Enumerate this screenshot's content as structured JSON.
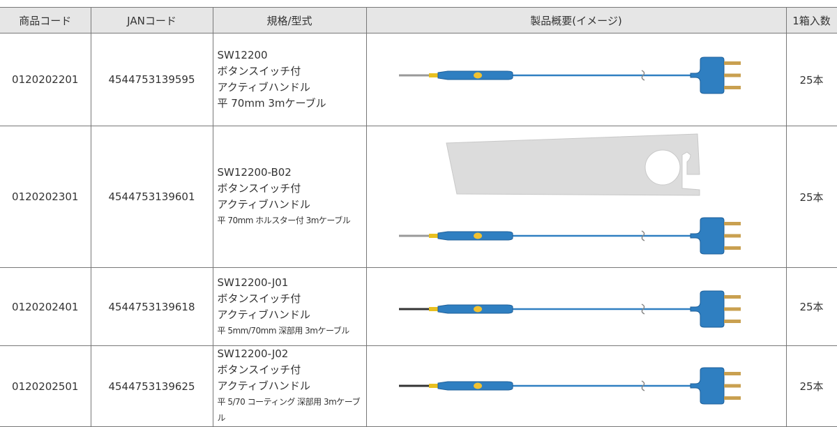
{
  "table": {
    "headers": [
      "商品コード",
      "JANコード",
      "規格/型式",
      "製品概要(イメージ)",
      "1箱入数"
    ],
    "rows": [
      {
        "code": "0120202201",
        "jan": "4544753139595",
        "spec": [
          "SW12200",
          "ボタンスイッチ付",
          "アクティブハンドル",
          "平 70mm 3mケーブル"
        ],
        "qty": "25本"
      },
      {
        "code": "0120202301",
        "jan": "4544753139601",
        "spec": [
          "SW12200-B02",
          "ボタンスイッチ付",
          "アクティブハンドル",
          "平 70mm ホルスター付 3mケーブル"
        ],
        "qty": "25本"
      },
      {
        "code": "0120202401",
        "jan": "4544753139618",
        "spec": [
          "SW12200-J01",
          "ボタンスイッチ付",
          "アクティブハンドル",
          "平 5mm/70mm 深部用 3mケーブル"
        ],
        "qty": "25本"
      },
      {
        "code": "0120202501",
        "jan": "4544753139625",
        "spec": [
          "SW12200-J02",
          "ボタンスイッチ付",
          "アクティブハンドル",
          "平 5/70 コーティング 深部用 3mケーブル"
        ],
        "qty": "25本"
      }
    ]
  }
}
